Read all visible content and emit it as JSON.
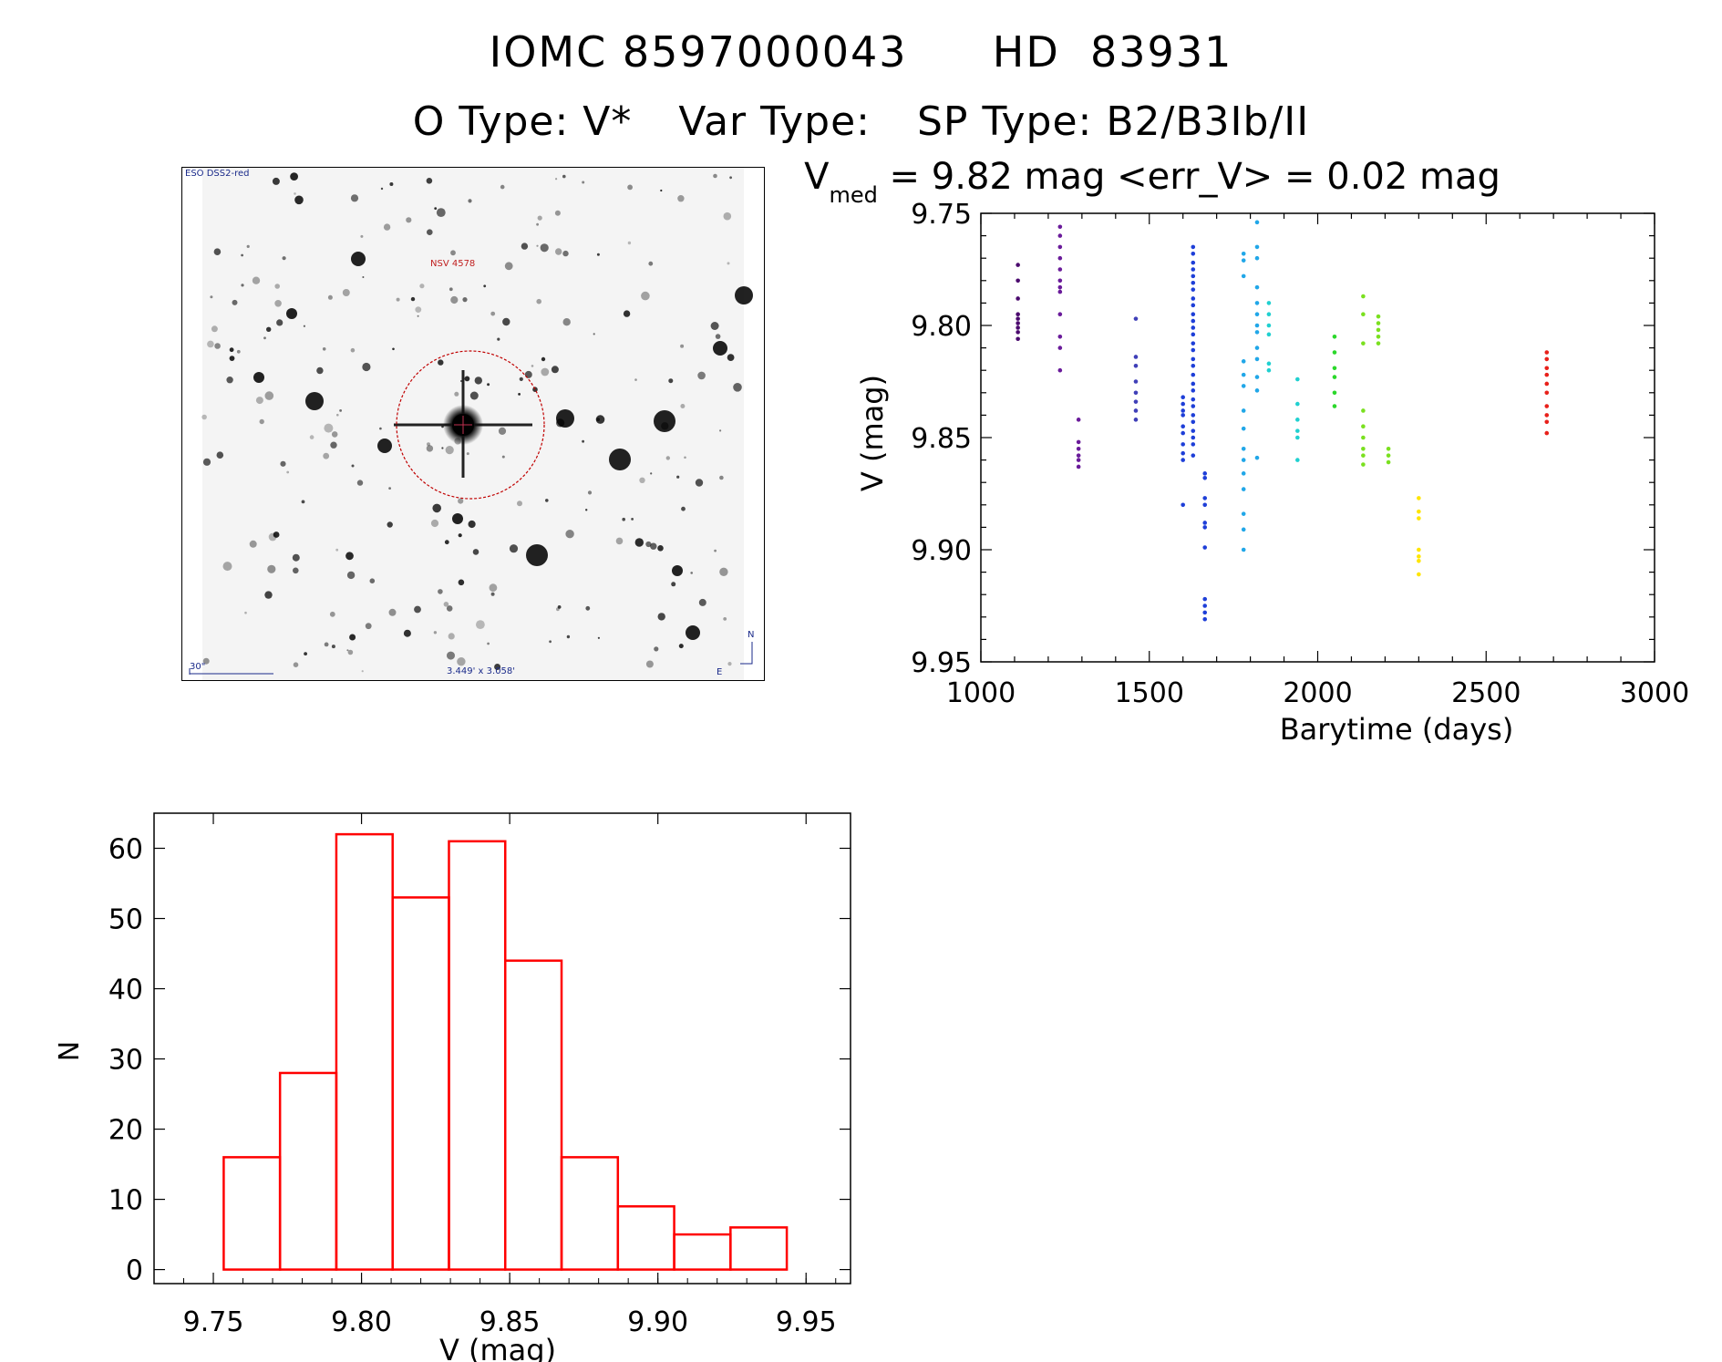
{
  "header": {
    "id_line": [
      "IOMC 8597000043",
      "HD  83931"
    ],
    "type_line": [
      "O Type: V*",
      "Var Type:",
      "SP Type: B2/B3Ib/II"
    ]
  },
  "stamp": {
    "survey_label": "ESO DSS2-red",
    "object_label": "NSV 4578",
    "scale_label": "30\"",
    "size_label": "3.449' x 3.058'",
    "north_label": "N",
    "east_label": "E"
  },
  "colors": {
    "histogram": "#ff0000",
    "lightcurve_groups": [
      "#4b0a6e",
      "#6a1b9a",
      "#5e35b1",
      "#3f3fb8",
      "#1e3fd8",
      "#21a7e8",
      "#20d0d0",
      "#2bd82b",
      "#7ae01f",
      "#ffe500",
      "#ff9d1a",
      "#ff5a14",
      "#e8201a"
    ]
  },
  "chart_data": [
    {
      "type": "scatter",
      "title_symbol": "V",
      "title_subscript": "med",
      "title_rest": " = 9.82 mag <err_V> = 0.02 mag",
      "xlabel": "Barytime (days)",
      "ylabel": "V (mag)",
      "xlim": [
        1000,
        3000
      ],
      "ylim": [
        9.95,
        9.75
      ],
      "xticks": [
        "1000",
        "1500",
        "2000",
        "2500",
        "3000"
      ],
      "yticks": [
        "9.75",
        "9.80",
        "9.85",
        "9.90",
        "9.95"
      ],
      "groups": [
        {
          "x": 1110,
          "v": [
            9.773,
            9.78,
            9.788,
            9.795,
            9.797,
            9.799,
            9.801,
            9.803,
            9.806
          ]
        },
        {
          "x": 1235,
          "v": [
            9.756,
            9.76,
            9.765,
            9.77,
            9.775,
            9.78,
            9.783,
            9.785,
            9.795,
            9.805,
            9.81,
            9.82
          ]
        },
        {
          "x": 1290,
          "v": [
            9.842,
            9.852,
            9.855,
            9.858,
            9.86,
            9.863
          ]
        },
        {
          "x": 1460,
          "v": [
            9.797,
            9.814,
            9.818,
            9.825,
            9.83,
            9.834,
            9.838,
            9.842
          ]
        },
        {
          "x": 1600,
          "v": [
            9.832,
            9.835,
            9.838,
            9.84,
            9.845,
            9.848,
            9.853,
            9.857,
            9.86,
            9.88
          ]
        },
        {
          "x": 1630,
          "v": [
            9.765,
            9.768,
            9.772,
            9.775,
            9.778,
            9.781,
            9.784,
            9.788,
            9.791,
            9.795,
            9.798,
            9.801,
            9.804,
            9.808,
            9.811,
            9.815,
            9.818,
            9.822,
            9.826,
            9.829,
            9.833,
            9.836,
            9.84,
            9.843,
            9.847,
            9.85,
            9.853,
            9.858
          ]
        },
        {
          "x": 1665,
          "v": [
            9.866,
            9.868,
            9.877,
            9.88,
            9.888,
            9.89,
            9.899,
            9.922,
            9.925,
            9.928,
            9.931
          ]
        },
        {
          "x": 1780,
          "v": [
            9.768,
            9.771,
            9.778,
            9.816,
            9.822,
            9.827,
            9.838,
            9.846,
            9.855,
            9.86,
            9.866,
            9.873,
            9.884,
            9.891,
            9.9
          ]
        },
        {
          "x": 1820,
          "v": [
            9.754,
            9.765,
            9.77,
            9.783,
            9.79,
            9.795,
            9.8,
            9.803,
            9.81,
            9.815,
            9.823,
            9.829,
            9.859
          ]
        },
        {
          "x": 1855,
          "v": [
            9.79,
            9.795,
            9.8,
            9.804,
            9.817,
            9.82
          ]
        },
        {
          "x": 1940,
          "v": [
            9.824,
            9.835,
            9.842,
            9.847,
            9.85,
            9.86
          ]
        },
        {
          "x": 2050,
          "v": [
            9.805,
            9.812,
            9.819,
            9.823,
            9.83,
            9.836
          ]
        },
        {
          "x": 2135,
          "v": [
            9.787,
            9.795,
            9.808,
            9.838,
            9.845,
            9.85,
            9.855,
            9.858,
            9.862
          ]
        },
        {
          "x": 2180,
          "v": [
            9.796,
            9.799,
            9.802,
            9.805,
            9.808
          ]
        },
        {
          "x": 2210,
          "v": [
            9.855,
            9.858,
            9.861
          ]
        },
        {
          "x": 2300,
          "v": [
            9.877,
            9.883,
            9.886,
            9.9,
            9.903,
            9.905,
            9.911
          ]
        },
        {
          "x": 2680,
          "v": [
            9.812,
            9.815,
            9.819,
            9.822,
            9.826,
            9.83,
            9.836,
            9.84,
            9.843,
            9.848
          ]
        }
      ]
    },
    {
      "type": "bar",
      "xlabel": "V (mag)",
      "ylabel": "N",
      "xlim": [
        9.73,
        9.965
      ],
      "ylim": [
        -2,
        65
      ],
      "xticks": [
        "9.75",
        "9.80",
        "9.85",
        "9.90",
        "9.95"
      ],
      "yticks": [
        "0",
        "10",
        "20",
        "30",
        "40",
        "50",
        "60"
      ],
      "bin_edges": [
        9.7535,
        9.7725,
        9.7915,
        9.8105,
        9.8295,
        9.8485,
        9.8675,
        9.8865,
        9.9055,
        9.9245,
        9.9435
      ],
      "counts": [
        16,
        28,
        62,
        53,
        61,
        44,
        16,
        9,
        5,
        6
      ]
    }
  ]
}
